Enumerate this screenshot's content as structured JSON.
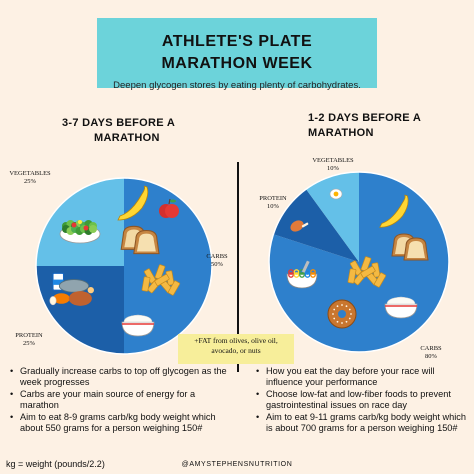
{
  "header": {
    "title_line1": "ATHLETE'S PLATE",
    "title_line2": "MARATHON WEEK",
    "subtitle": "Deepen glycogen stores by eating plenty of carbohydrates."
  },
  "left_plate": {
    "heading_line1": "3-7 DAYS BEFORE A",
    "heading_line2": "MARATHON",
    "segments": [
      {
        "label": "VEGETABLES",
        "percent": "25%",
        "value": 25,
        "color": "#64c0e8"
      },
      {
        "label": "CARBS",
        "percent": "50%",
        "value": 50,
        "color": "#2e80cc"
      },
      {
        "label": "PROTEIN",
        "percent": "25%",
        "value": 25,
        "color": "#1c5fa8"
      }
    ],
    "bullets": [
      "Gradually increase carbs to top off glycogen as the week progresses",
      "Carbs are your main source of energy for a marathon",
      "Aim to eat 8-9 grams carb/kg body weight which about 550 grams for a person weighing 150#"
    ]
  },
  "right_plate": {
    "heading_line1": "1-2 DAYS BEFORE A",
    "heading_line2": "MARATHON",
    "segments": [
      {
        "label": "VEGETABLES",
        "percent": "10%",
        "value": 10,
        "color": "#64c0e8"
      },
      {
        "label": "PROTEIN",
        "percent": "10%",
        "value": 10,
        "color": "#1c5fa8"
      },
      {
        "label": "CARBS",
        "percent": "80%",
        "value": 80,
        "color": "#2e80cc"
      }
    ],
    "bullets": [
      "How you eat the day before your race will influence your performance",
      "Choose low-fat and low-fiber foods to prevent gastrointestinal issues on race day",
      "Aim to eat 9-11 grams carb/kg body weight which is about 700 grams for a person weighing 150#"
    ]
  },
  "fat_note": {
    "line1": "+FAT from olives, olive oil,",
    "line2": "avocado, or nuts"
  },
  "footer": {
    "formula": "kg = weight (pounds/2.2)",
    "handle": "@AMYSTEPHENSNUTRITION"
  },
  "icons": [
    "salad-icon",
    "banana-icon",
    "apple-icon",
    "bread-icon",
    "protein-foods-icon",
    "pasta-icon",
    "rice-icon",
    "egg-icon",
    "chicken-icon",
    "cereal-icon",
    "bagel-icon"
  ]
}
